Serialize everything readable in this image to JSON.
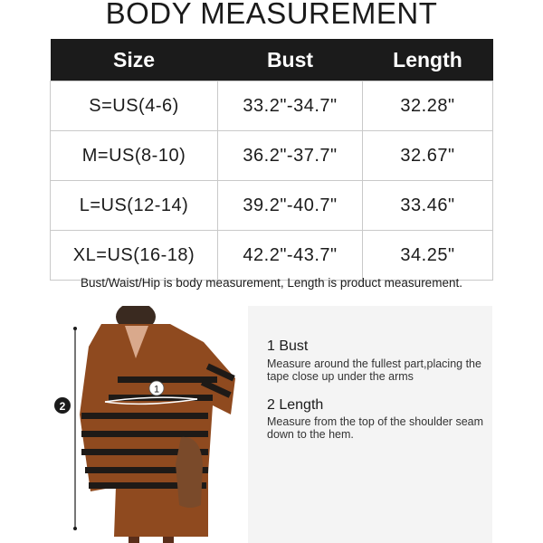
{
  "title": "BODY MEASUREMENT",
  "table": {
    "headers": [
      "Size",
      "Bust",
      "Length"
    ],
    "rows": [
      [
        "S=US(4-6)",
        "33.2\"-34.7\"",
        "32.28\""
      ],
      [
        "M=US(8-10)",
        "36.2\"-37.7\"",
        "32.67\""
      ],
      [
        "L=US(12-14)",
        "39.2\"-40.7\"",
        "33.46\""
      ],
      [
        "XL=US(16-18)",
        "42.2\"-43.7\"",
        "34.25\""
      ]
    ]
  },
  "note": "Bust/Waist/Hip is body measurement, Length is product measurement.",
  "guide": {
    "items": [
      {
        "heading": "1 Bust",
        "text": "Measure around the fullest part,placing the tape close up under the arms"
      },
      {
        "heading": "2 Length",
        "text": "Measure from the top of the shoulder seam down to the hem."
      }
    ],
    "markers": [
      "1",
      "2"
    ]
  },
  "colors": {
    "header_bg": "#1b1b1b",
    "sweater": "#8f4a1f",
    "stripe": "#1e1a17",
    "panel": "#f4f4f4"
  }
}
